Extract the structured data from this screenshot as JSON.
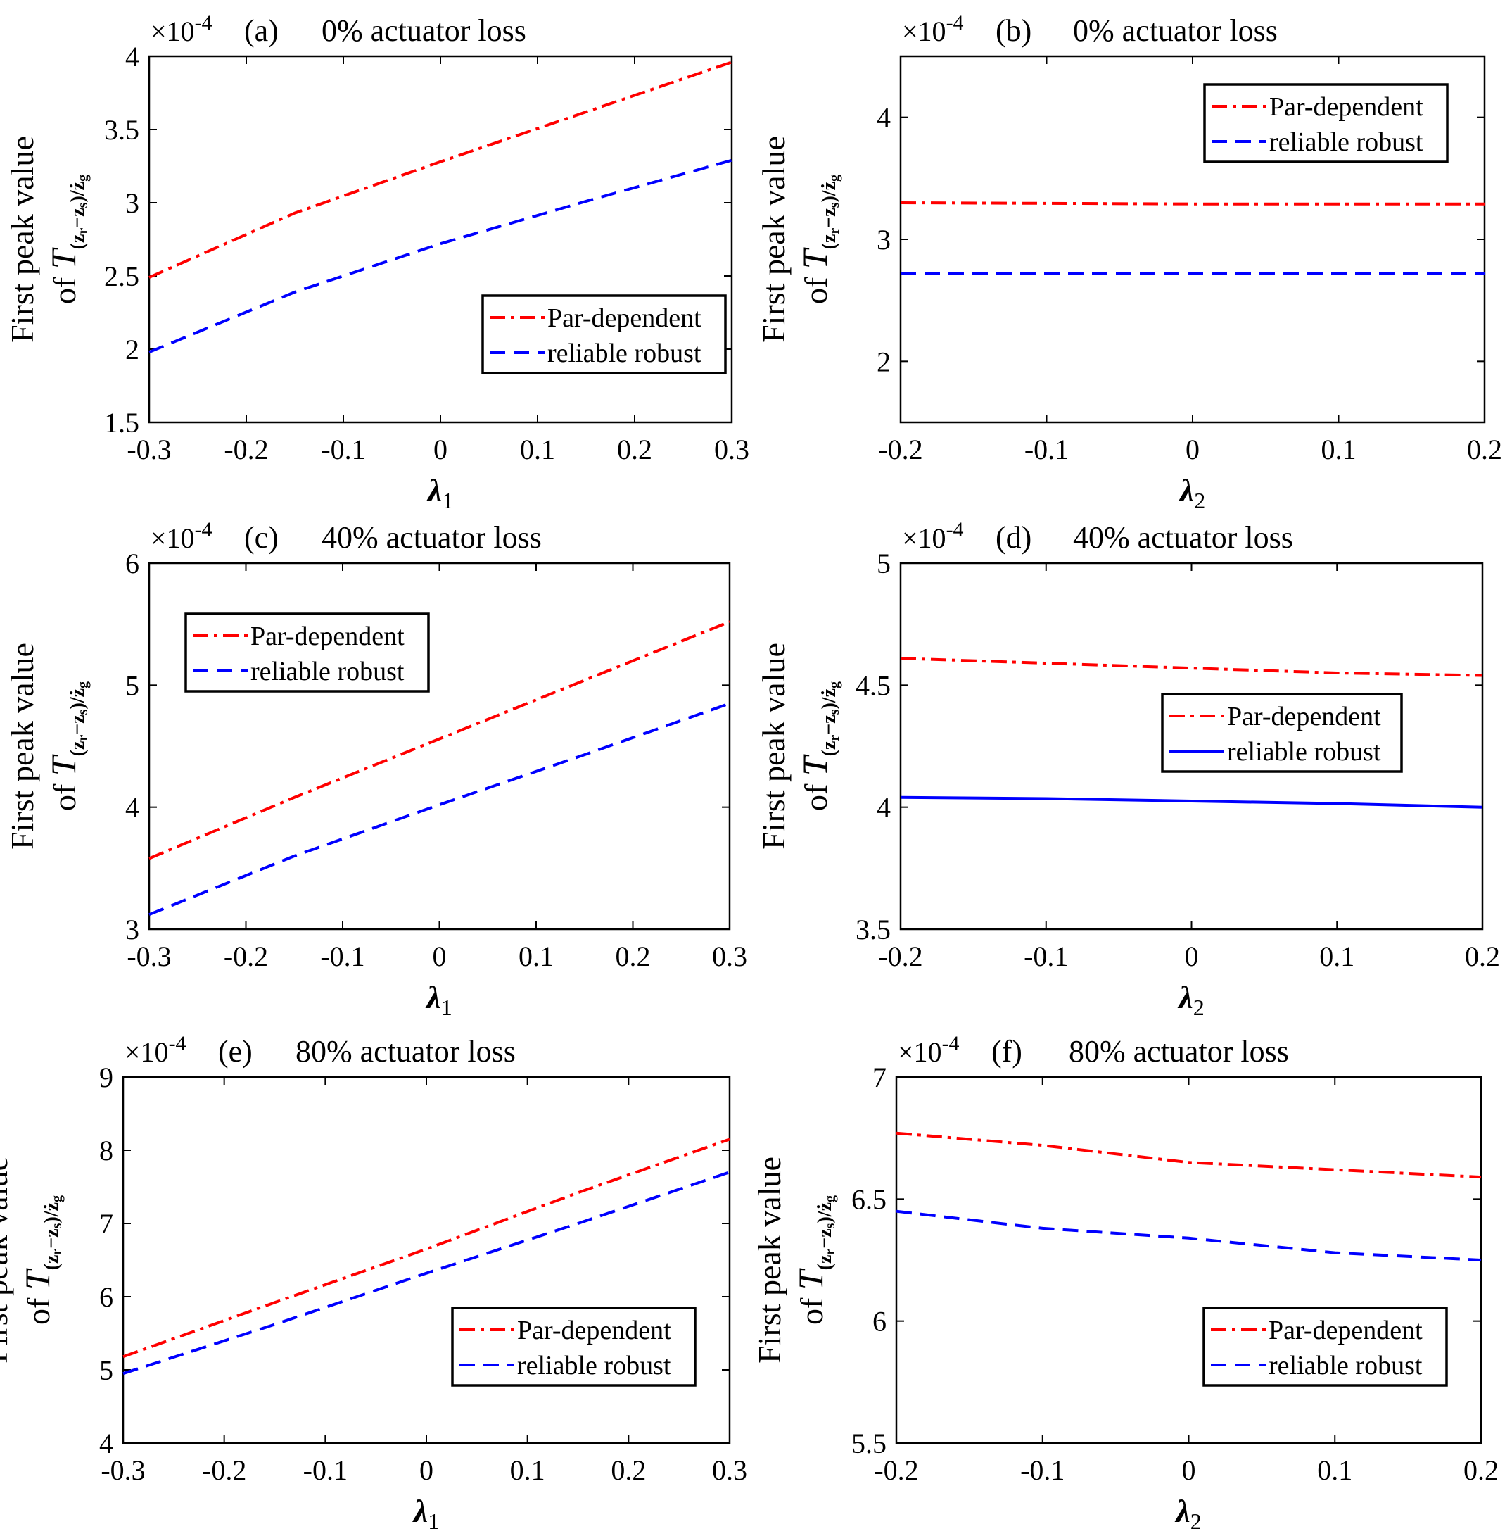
{
  "figure": {
    "ylabel_line1": "First peak value",
    "ylabel_line2_prefix": "of ",
    "ylabel_T": "T",
    "ylabel_subscript": "(z",
    "ylabel_sub_r": "r",
    "ylabel_sub_minus": "−z",
    "ylabel_sub_s": "s",
    "ylabel_sub_tail": ")/ż",
    "ylabel_sub_g": "g",
    "exponent_base": "×10",
    "exponent_power": "-4"
  },
  "colors": {
    "par_dependent": "#ff0000",
    "reliable_robust": "#0000ff",
    "axis": "#000000"
  },
  "chart_data": [
    {
      "type": "line",
      "panel": "a",
      "label": "(a)",
      "title": "0% actuator loss",
      "xlabel_sym": "λ",
      "xlabel_sub": "1",
      "xlim": [
        -0.3,
        0.3
      ],
      "ylim": [
        1.5,
        4
      ],
      "xticks": [
        -0.3,
        -0.2,
        -0.1,
        0,
        0.1,
        0.2,
        0.3
      ],
      "xtick_labels": [
        "-0.3",
        "-0.2",
        "-0.1",
        "0",
        "0.1",
        "0.2",
        "0.3"
      ],
      "yticks": [
        1.5,
        2,
        2.5,
        3,
        3.5,
        4
      ],
      "ytick_labels": [
        "1.5",
        "2",
        "2.5",
        "3",
        "3.5",
        "4"
      ],
      "y_scale": "×10^-4",
      "legend_position": "right-lower",
      "series": [
        {
          "name": "Par-dependent",
          "style": "dashdot",
          "color": "#ff0000",
          "x": [
            -0.3,
            -0.15,
            0,
            0.15,
            0.3
          ],
          "y": [
            2.49,
            2.93,
            3.28,
            3.62,
            3.96
          ]
        },
        {
          "name": "reliable robust",
          "style": "dashed",
          "color": "#0000ff",
          "x": [
            -0.3,
            -0.15,
            0,
            0.15,
            0.3
          ],
          "y": [
            1.98,
            2.39,
            2.72,
            3.01,
            3.29
          ]
        }
      ]
    },
    {
      "type": "line",
      "panel": "b",
      "label": "(b)",
      "title": "0% actuator loss",
      "xlabel_sym": "λ",
      "xlabel_sub": "2",
      "xlim": [
        -0.2,
        0.2
      ],
      "ylim": [
        1.5,
        4.5
      ],
      "xticks": [
        -0.2,
        -0.1,
        0,
        0.1,
        0.2
      ],
      "xtick_labels": [
        "-0.2",
        "-0.1",
        "0",
        "0.1",
        "0.2"
      ],
      "yticks": [
        2,
        3,
        4
      ],
      "ytick_labels": [
        "2",
        "3",
        "4"
      ],
      "y_scale": "×10^-4",
      "legend_position": "top-right",
      "series": [
        {
          "name": "Par-dependent",
          "style": "dashdot",
          "color": "#ff0000",
          "x": [
            -0.2,
            0,
            0.2
          ],
          "y": [
            3.3,
            3.29,
            3.29
          ]
        },
        {
          "name": "reliable robust",
          "style": "dashed",
          "color": "#0000ff",
          "x": [
            -0.2,
            0,
            0.2
          ],
          "y": [
            2.72,
            2.72,
            2.72
          ]
        }
      ]
    },
    {
      "type": "line",
      "panel": "c",
      "label": "(c)",
      "title": "40% actuator loss",
      "xlabel_sym": "λ",
      "xlabel_sub": "1",
      "xlim": [
        -0.3,
        0.3
      ],
      "ylim": [
        3,
        6
      ],
      "xticks": [
        -0.3,
        -0.2,
        -0.1,
        0,
        0.1,
        0.2,
        0.3
      ],
      "xtick_labels": [
        "-0.3",
        "-0.2",
        "-0.1",
        "0",
        "0.1",
        "0.2",
        "0.3"
      ],
      "yticks": [
        3,
        4,
        5,
        6
      ],
      "ytick_labels": [
        "3",
        "4",
        "5",
        "6"
      ],
      "y_scale": "×10^-4",
      "legend_position": "top-left",
      "series": [
        {
          "name": "Par-dependent",
          "style": "dashdot",
          "color": "#ff0000",
          "x": [
            -0.3,
            -0.15,
            0,
            0.15,
            0.3
          ],
          "y": [
            3.58,
            4.08,
            4.56,
            5.04,
            5.52
          ]
        },
        {
          "name": "reliable robust",
          "style": "dashed",
          "color": "#0000ff",
          "x": [
            -0.3,
            -0.15,
            0,
            0.15,
            0.3
          ],
          "y": [
            3.12,
            3.6,
            4.02,
            4.43,
            4.85
          ]
        }
      ]
    },
    {
      "type": "line",
      "panel": "d",
      "label": "(d)",
      "title": "40% actuator loss",
      "xlabel_sym": "λ",
      "xlabel_sub": "2",
      "xlim": [
        -0.2,
        0.2
      ],
      "ylim": [
        3.5,
        5
      ],
      "xticks": [
        -0.2,
        -0.1,
        0,
        0.1,
        0.2
      ],
      "xtick_labels": [
        "-0.2",
        "-0.1",
        "0",
        "0.1",
        "0.2"
      ],
      "yticks": [
        3.5,
        4,
        4.5,
        5
      ],
      "ytick_labels": [
        "3.5",
        "4",
        "4.5",
        "5"
      ],
      "y_scale": "×10^-4",
      "legend_position": "right-middle",
      "series": [
        {
          "name": "Par-dependent",
          "style": "dashdot",
          "color": "#ff0000",
          "x": [
            -0.2,
            -0.1,
            0,
            0.1,
            0.2
          ],
          "y": [
            4.61,
            4.59,
            4.57,
            4.55,
            4.54
          ]
        },
        {
          "name": "reliable robust",
          "style": "solid",
          "color": "#0000ff",
          "x": [
            -0.2,
            -0.1,
            0,
            0.1,
            0.2
          ],
          "y": [
            4.04,
            4.035,
            4.025,
            4.015,
            4.0
          ]
        }
      ]
    },
    {
      "type": "line",
      "panel": "e",
      "label": "(e)",
      "title": "80% actuator loss",
      "xlabel_sym": "λ",
      "xlabel_sub": "1",
      "xlim": [
        -0.3,
        0.3
      ],
      "ylim": [
        4,
        9
      ],
      "xticks": [
        -0.3,
        -0.2,
        -0.1,
        0,
        0.1,
        0.2,
        0.3
      ],
      "xtick_labels": [
        "-0.3",
        "-0.2",
        "-0.1",
        "0",
        "0.1",
        "0.2",
        "0.3"
      ],
      "yticks": [
        4,
        5,
        6,
        7,
        8,
        9
      ],
      "ytick_labels": [
        "4",
        "5",
        "6",
        "7",
        "8",
        "9"
      ],
      "y_scale": "×10^-4",
      "legend_position": "bottom-right",
      "series": [
        {
          "name": "Par-dependent",
          "style": "dashdot",
          "color": "#ff0000",
          "x": [
            -0.3,
            -0.15,
            0,
            0.15,
            0.3
          ],
          "y": [
            5.18,
            5.92,
            6.65,
            7.42,
            8.15
          ]
        },
        {
          "name": "reliable robust",
          "style": "dashed",
          "color": "#0000ff",
          "x": [
            -0.3,
            -0.15,
            0,
            0.15,
            0.3
          ],
          "y": [
            4.95,
            5.62,
            6.32,
            7.0,
            7.7
          ]
        }
      ]
    },
    {
      "type": "line",
      "panel": "f",
      "label": "(f)",
      "title": "80% actuator loss",
      "xlabel_sym": "λ",
      "xlabel_sub": "2",
      "xlim": [
        -0.2,
        0.2
      ],
      "ylim": [
        5.5,
        7
      ],
      "xticks": [
        -0.2,
        -0.1,
        0,
        0.1,
        0.2
      ],
      "xtick_labels": [
        "-0.2",
        "-0.1",
        "0",
        "0.1",
        "0.2"
      ],
      "yticks": [
        5.5,
        6,
        6.5,
        7
      ],
      "ytick_labels": [
        "5.5",
        "6",
        "6.5",
        "7"
      ],
      "y_scale": "×10^-4",
      "legend_position": "bottom-right",
      "series": [
        {
          "name": "Par-dependent",
          "style": "dashdot",
          "color": "#ff0000",
          "x": [
            -0.2,
            -0.1,
            0,
            0.1,
            0.2
          ],
          "y": [
            6.77,
            6.72,
            6.65,
            6.62,
            6.59
          ]
        },
        {
          "name": "reliable robust",
          "style": "dashed",
          "color": "#0000ff",
          "x": [
            -0.2,
            -0.1,
            0,
            0.1,
            0.2
          ],
          "y": [
            6.45,
            6.38,
            6.34,
            6.28,
            6.25
          ]
        }
      ]
    }
  ]
}
